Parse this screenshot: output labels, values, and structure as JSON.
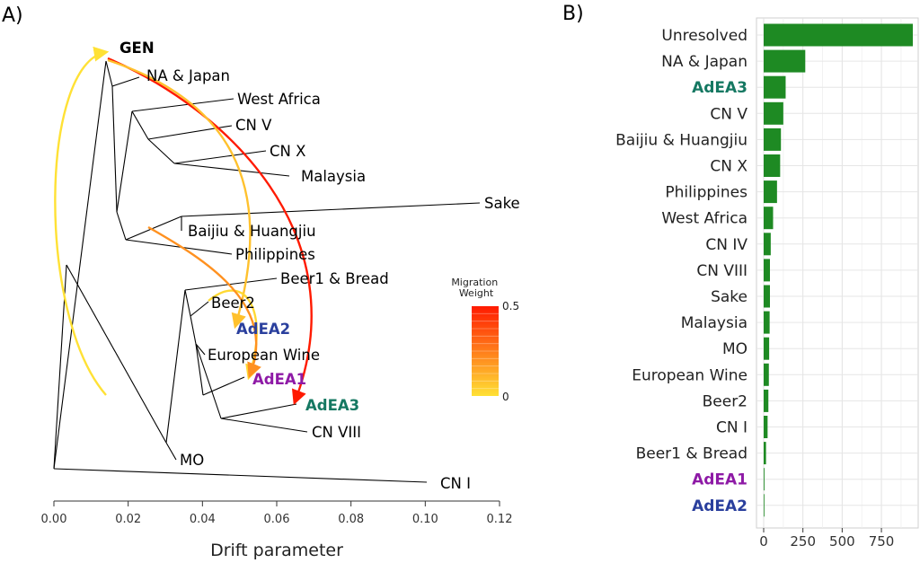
{
  "chart_data": [
    {
      "type": "tree",
      "panel_label": "A)",
      "xlabel": "Drift parameter",
      "xlim": [
        0,
        0.12
      ],
      "x_ticks": [
        "0.00",
        "0.02",
        "0.04",
        "0.06",
        "0.08",
        "0.10",
        "0.12"
      ],
      "x_tick_values": [
        0,
        0.02,
        0.04,
        0.06,
        0.08,
        0.1,
        0.12
      ],
      "tips": [
        {
          "label": "GEN",
          "x": 0.015,
          "color": "#000000",
          "bold": true
        },
        {
          "label": "NA & Japan",
          "x": 0.025,
          "color": "#000000",
          "bold": false
        },
        {
          "label": "West Africa",
          "x": 0.049,
          "color": "#000000",
          "bold": false
        },
        {
          "label": "CN V",
          "x": 0.049,
          "color": "#000000",
          "bold": false
        },
        {
          "label": "CN X",
          "x": 0.057,
          "color": "#000000",
          "bold": false
        },
        {
          "label": "Malaysia",
          "x": 0.064,
          "color": "#000000",
          "bold": false
        },
        {
          "label": "Sake",
          "x": 0.115,
          "color": "#000000",
          "bold": false
        },
        {
          "label": "Baijiu & Huangjiu",
          "x": 0.034,
          "color": "#000000",
          "bold": false
        },
        {
          "label": "Philippines",
          "x": 0.049,
          "color": "#000000",
          "bold": false
        },
        {
          "label": "Beer1 & Bread",
          "x": 0.061,
          "color": "#000000",
          "bold": false
        },
        {
          "label": "Beer2",
          "x": 0.04,
          "color": "#000000",
          "bold": false
        },
        {
          "label": "AdEA2",
          "x": 0.048,
          "color": "#2a3f9d",
          "bold": true
        },
        {
          "label": "European Wine",
          "x": 0.04,
          "color": "#000000",
          "bold": false
        },
        {
          "label": "AdEA1",
          "x": 0.052,
          "color": "#8e1aa6",
          "bold": true
        },
        {
          "label": "AdEA3",
          "x": 0.066,
          "color": "#157862",
          "bold": true
        },
        {
          "label": "CN VIII",
          "x": 0.066,
          "color": "#000000",
          "bold": false
        },
        {
          "label": "MO",
          "x": 0.033,
          "color": "#000000",
          "bold": false
        },
        {
          "label": "CN I",
          "x": 0.102,
          "color": "#000000",
          "bold": false
        }
      ],
      "migration_edges": [
        {
          "from": "Malaysia",
          "to": "GEN",
          "weight": 0.0
        },
        {
          "from": "GEN",
          "to": "AdEA3",
          "weight": 0.5
        },
        {
          "from": "GEN",
          "to": "AdEA2",
          "weight": 0.08
        },
        {
          "from": "Beer2",
          "to": "AdEA1",
          "weight": 0.02
        },
        {
          "from": "Baijiu & Huangjiu",
          "to": "AdEA1",
          "weight": 0.2
        }
      ],
      "legend": {
        "title": "Migration\nWeight",
        "max_label": "0.5",
        "min_label": "0",
        "color_low": "#ffe135",
        "color_high": "#ff1a00"
      }
    },
    {
      "type": "bar",
      "orientation": "horizontal",
      "panel_label": "B)",
      "color": "#1e8a23",
      "categories": [
        "Unresolved",
        "NA & Japan",
        "AdEA3",
        "CN V",
        "Baijiu & Huangjiu",
        "CN X",
        "Philippines",
        "West Africa",
        "CN IV",
        "CN VIII",
        "Sake",
        "Malaysia",
        "MO",
        "European Wine",
        "Beer2",
        "CN I",
        "Beer1 & Bread",
        "AdEA1",
        "AdEA2"
      ],
      "label_colors": [
        "#222222",
        "#222222",
        "#157862",
        "#222222",
        "#222222",
        "#222222",
        "#222222",
        "#222222",
        "#222222",
        "#222222",
        "#222222",
        "#222222",
        "#222222",
        "#222222",
        "#222222",
        "#222222",
        "#222222",
        "#8e1aa6",
        "#2a3f9d"
      ],
      "label_bold": [
        false,
        false,
        true,
        false,
        false,
        false,
        false,
        false,
        false,
        false,
        false,
        false,
        false,
        false,
        false,
        false,
        false,
        true,
        true
      ],
      "values": [
        950,
        265,
        140,
        125,
        110,
        105,
        85,
        60,
        45,
        40,
        40,
        38,
        35,
        33,
        30,
        25,
        15,
        5,
        4
      ],
      "xlim": [
        0,
        950
      ],
      "x_ticks": [
        "0",
        "250",
        "500",
        "750"
      ],
      "x_tick_values": [
        0,
        250,
        500,
        750
      ],
      "grid": true
    }
  ]
}
